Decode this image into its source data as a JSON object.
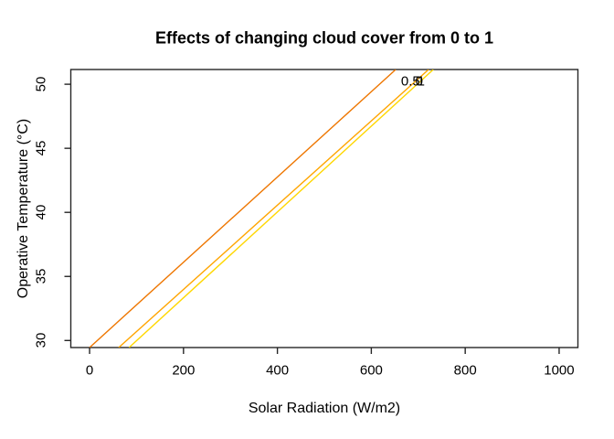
{
  "chart_data": {
    "type": "line",
    "title": "Effects of changing cloud cover from 0 to 1",
    "xlabel": "Solar Radiation (W/m2)",
    "ylabel": "Operative Temperature (°C)",
    "xlim": [
      -40,
      1040
    ],
    "ylim": [
      29.45,
      51.15
    ],
    "x_ticks": [
      0,
      200,
      400,
      600,
      800,
      1000
    ],
    "y_ticks": [
      30,
      35,
      40,
      45,
      50
    ],
    "grid": false,
    "legend_position": "none",
    "axis_color": "#262626",
    "series": [
      {
        "name": "line-1",
        "label": "0.5",
        "color": "#EE7600",
        "x": [
          0,
          652
        ],
        "y": [
          29.45,
          51.15
        ],
        "label_x": 683.5,
        "label_y": 50.22
      },
      {
        "name": "line-2",
        "label": "0",
        "color": "#FFA500",
        "x": [
          62,
          722
        ],
        "y": [
          29.45,
          51.15
        ],
        "label_x": 702.0,
        "label_y": 50.22
      },
      {
        "name": "line-3",
        "label": "1",
        "color": "#FFD700",
        "x": [
          84,
          732
        ],
        "y": [
          29.45,
          51.15
        ],
        "label_x": 705.9,
        "label_y": 50.22
      }
    ]
  }
}
